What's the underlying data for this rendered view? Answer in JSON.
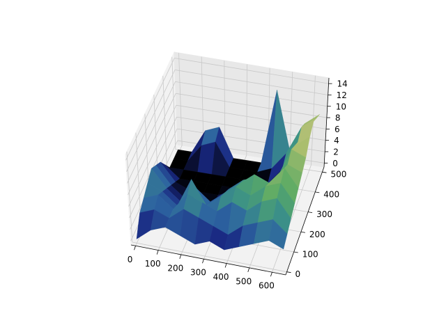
{
  "chart_data": {
    "type": "surface",
    "colormap": "gist_earth",
    "x": [
      0,
      64,
      128,
      192,
      256,
      320,
      384,
      448,
      512,
      576,
      640
    ],
    "y": [
      0,
      48,
      96,
      144,
      192,
      240,
      288,
      336,
      384,
      432,
      480
    ],
    "z": [
      [
        0,
        2,
        3,
        2,
        1,
        2,
        1,
        2,
        3,
        4,
        3
      ],
      [
        3,
        4,
        3,
        5,
        4,
        3,
        2,
        4,
        5,
        6,
        4
      ],
      [
        4,
        5,
        3,
        6,
        5,
        4,
        6,
        5,
        7,
        8,
        5
      ],
      [
        5,
        4,
        2,
        7,
        3,
        5,
        7,
        6,
        8,
        9,
        6
      ],
      [
        6,
        3,
        1,
        4,
        2,
        4,
        6,
        8,
        7,
        10,
        7
      ],
      [
        5,
        2,
        0,
        1,
        0,
        3,
        5,
        6,
        5,
        9,
        8
      ],
      [
        4,
        1,
        0,
        0,
        0,
        1,
        2,
        3,
        4,
        10,
        9
      ],
      [
        2,
        0,
        0,
        0,
        0,
        0,
        0,
        1,
        2,
        9,
        11
      ],
      [
        0,
        0,
        0,
        0,
        0,
        0,
        0,
        0,
        3,
        8,
        12
      ],
      [
        0,
        0,
        3,
        4,
        0,
        0,
        0,
        1,
        4,
        9,
        11
      ],
      [
        0,
        0,
        4,
        5,
        0,
        0,
        0,
        13,
        3,
        8,
        10
      ]
    ],
    "xlim": [
      -20,
      660
    ],
    "ylim": [
      -15,
      525
    ],
    "zlim": [
      -0.7,
      15
    ],
    "xticks": [
      0,
      100,
      200,
      300,
      400,
      500,
      600
    ],
    "yticks": [
      0,
      100,
      200,
      300,
      400,
      500
    ],
    "zticks": [
      0,
      2,
      4,
      6,
      8,
      10,
      12,
      14
    ],
    "grid": true
  }
}
